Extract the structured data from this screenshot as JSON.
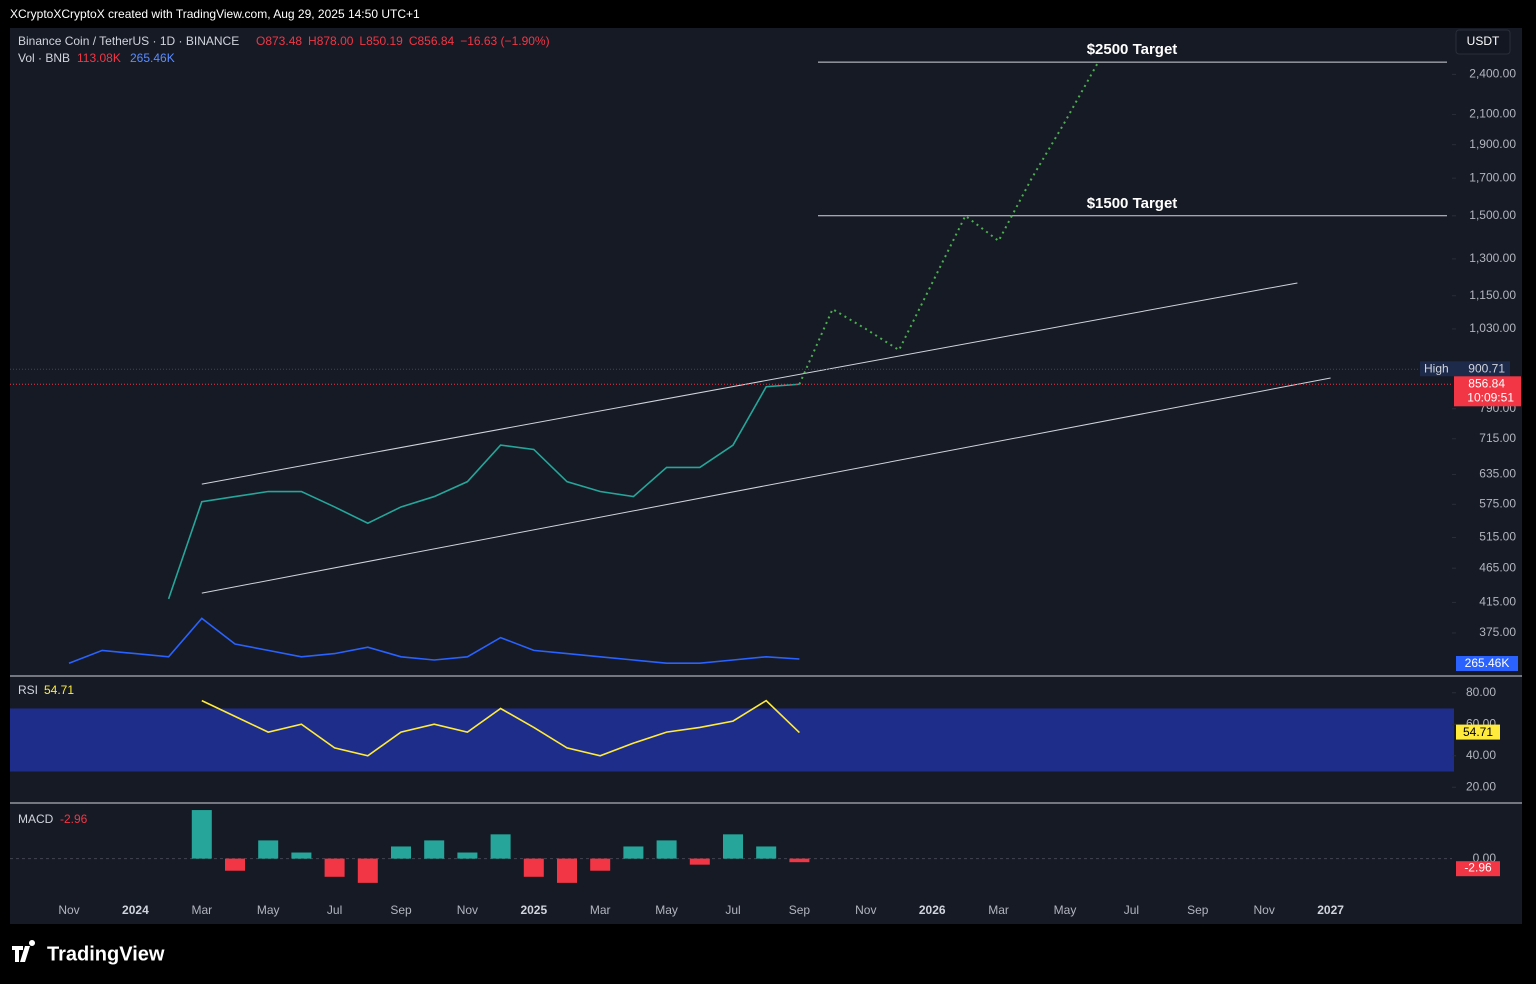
{
  "header": {
    "caption": "XCryptoXCryptoX created with TradingView.com, Aug 29, 2025 14:50 UTC+1",
    "symbol": "Binance Coin / TetherUS · 1D · BINANCE",
    "ohlc": [
      "O873.48",
      "H878.00",
      "L850.19",
      "C856.84",
      "−16.63 (−1.90%)"
    ],
    "volume_legend": "Vol · BNB",
    "volume_values": [
      "113.08K",
      "265.46K"
    ],
    "logo": "TradingView"
  },
  "chart_data": {
    "type": "line",
    "log_scale": true,
    "categories": [
      "Nov",
      null,
      "2024",
      null,
      "Mar",
      null,
      "May",
      null,
      "Jul",
      null,
      "Sep",
      null,
      "Nov",
      null,
      "2025",
      null,
      "Mar",
      null,
      "May",
      null,
      "Jul",
      null,
      "Sep",
      null,
      "Nov",
      null,
      "2026",
      null,
      "Mar",
      null,
      "May",
      null,
      "Jul",
      null,
      "Sep",
      null,
      "Nov",
      null,
      "2027"
    ],
    "series": [
      {
        "color": "#26a69a",
        "values": [
          null,
          null,
          null,
          420,
          580,
          590,
          600,
          600,
          570,
          540,
          570,
          590,
          620,
          700,
          690,
          620,
          600,
          590,
          650,
          650,
          700,
          850,
          857,
          null,
          null,
          null,
          null,
          null,
          null,
          null,
          null,
          null,
          null,
          null,
          null,
          null,
          null,
          null,
          null
        ]
      },
      {
        "color": "#4caf50",
        "values": [
          null,
          null,
          null,
          null,
          null,
          null,
          null,
          null,
          null,
          null,
          null,
          null,
          null,
          null,
          null,
          null,
          null,
          null,
          null,
          null,
          null,
          null,
          857,
          1100,
          1030,
          960,
          1200,
          1500,
          1380,
          1700,
          2050,
          2500,
          null,
          null,
          null,
          null,
          null,
          null,
          null
        ]
      }
    ],
    "channel": [
      {
        "x": [
          4,
          37
        ],
        "values": [
          615,
          1200
        ]
      },
      {
        "x": [
          4,
          38
        ],
        "values": [
          428,
          875
        ]
      }
    ],
    "targets": [
      {
        "label": "$2500 Target",
        "value": 2500
      },
      {
        "label": "$1500 Target",
        "value": 1500
      }
    ],
    "ylim": [
      325,
      2800
    ],
    "yticks": [
      {
        "value": 375,
        "label": "375.00"
      },
      {
        "value": 415,
        "label": "415.00"
      },
      {
        "value": 465,
        "label": "465.00"
      },
      {
        "value": 515,
        "label": "515.00"
      },
      {
        "value": 575,
        "label": "575.00"
      },
      {
        "value": 635,
        "label": "635.00"
      },
      {
        "value": 715,
        "label": "715.00"
      },
      {
        "value": 790,
        "label": "790.00"
      },
      {
        "value": 1030,
        "label": "1,030.00"
      },
      {
        "value": 1150,
        "label": "1,150.00"
      },
      {
        "value": 1300,
        "label": "1,300.00"
      },
      {
        "value": 1500,
        "label": "1,500.00"
      },
      {
        "value": 1700,
        "label": "1,700.00"
      },
      {
        "value": 1900,
        "label": "1,900.00"
      },
      {
        "value": 2100,
        "label": "2,100.00"
      },
      {
        "value": 2400,
        "label": "2,400.00"
      }
    ],
    "axis_unit": "USDT",
    "high": {
      "label": "High",
      "value": 900.71
    },
    "last": {
      "value": 856.84,
      "countdown": "10:09:51"
    },
    "volume": {
      "color": "#2962ff",
      "ylim": [
        0,
        1500
      ],
      "values": [
        200,
        400,
        350,
        300,
        900,
        500,
        400,
        300,
        350,
        450,
        300,
        250,
        300,
        600,
        400,
        350,
        300,
        250,
        200,
        200,
        250,
        300,
        265.46,
        null,
        null,
        null,
        null,
        null,
        null,
        null,
        null,
        null,
        null,
        null,
        null,
        null,
        null,
        null,
        null
      ],
      "value_label": "265.46K"
    },
    "rsi": {
      "name": "RSI",
      "color": "#ffeb3b",
      "ylim": [
        10,
        90
      ],
      "yticks": [
        {
          "value": 20,
          "label": "20.00"
        },
        {
          "value": 40,
          "label": "40.00"
        },
        {
          "value": 60,
          "label": "60.00"
        },
        {
          "value": 80,
          "label": "80.00"
        }
      ],
      "band": [
        30,
        70
      ],
      "values": [
        null,
        null,
        null,
        null,
        75,
        65,
        55,
        60,
        45,
        40,
        55,
        60,
        55,
        70,
        58,
        45,
        40,
        48,
        55,
        58,
        62,
        75,
        54.71,
        null,
        null,
        null,
        null,
        null,
        null,
        null,
        null,
        null,
        null,
        null,
        null,
        null,
        null,
        null,
        null
      ],
      "current": 54.71
    },
    "macd": {
      "name": "MACD",
      "ylim": [
        -30,
        45
      ],
      "yticks": [
        {
          "value": 0,
          "label": "0.00"
        }
      ],
      "values": [
        null,
        null,
        null,
        null,
        40,
        -10,
        15,
        5,
        -15,
        -20,
        10,
        15,
        5,
        20,
        -15,
        -20,
        -10,
        10,
        15,
        -5,
        20,
        10,
        -2.96,
        null,
        null,
        null,
        null,
        null,
        null,
        null,
        null,
        null,
        null,
        null,
        null,
        null,
        null,
        null,
        null
      ],
      "current": -2.96
    }
  }
}
